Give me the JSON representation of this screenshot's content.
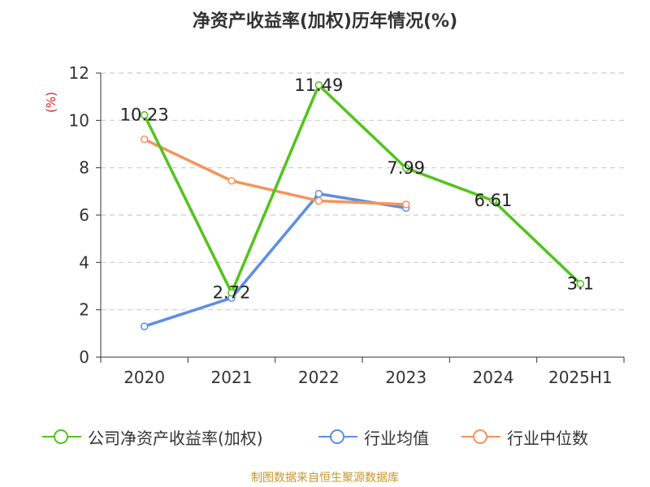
{
  "title": "净资产收益率(加权)历年情况(%)",
  "source": "制图数据来自恒生聚源数据库",
  "chart_data": {
    "type": "line",
    "title": "净资产收益率(加权)历年情况(%)",
    "ylabel": "(%)",
    "xlabel": "",
    "categories": [
      "2020",
      "2021",
      "2022",
      "2023",
      "2024",
      "2025H1"
    ],
    "ylim": [
      0,
      12
    ],
    "yticks": [
      0,
      2,
      4,
      6,
      8,
      10,
      12
    ],
    "grid": true,
    "legend_position": "bottom",
    "series": [
      {
        "name": "公司净资产收益率(加权)",
        "color": "#52c41a",
        "values": [
          10.23,
          2.72,
          11.49,
          7.99,
          6.61,
          3.1
        ],
        "labels": [
          "10.23",
          "2.72",
          "11.49",
          "7.99",
          "6.61",
          "3.1"
        ]
      },
      {
        "name": "行业均值",
        "color": "#5b8ee6",
        "values": [
          1.3,
          2.5,
          6.9,
          6.3,
          null,
          null
        ]
      },
      {
        "name": "行业中位数",
        "color": "#f7935a",
        "values": [
          9.2,
          7.45,
          6.6,
          6.45,
          null,
          null
        ]
      }
    ]
  }
}
